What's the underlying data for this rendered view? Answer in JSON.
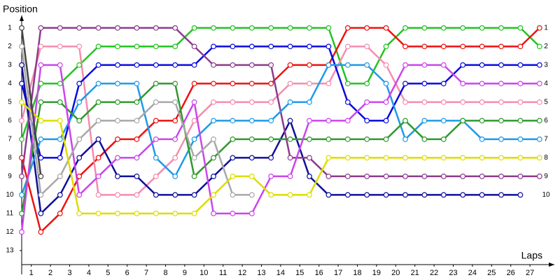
{
  "chart_data": {
    "type": "line",
    "y_label": "Position",
    "x_label": "Laps",
    "x": [
      0,
      1,
      2,
      3,
      4,
      5,
      6,
      7,
      8,
      9,
      10,
      11,
      12,
      13,
      14,
      15,
      16,
      17,
      18,
      19,
      20,
      21,
      22,
      23,
      24,
      25,
      26,
      27
    ],
    "xlim": [
      0,
      28
    ],
    "xticks": [
      {
        "value": 0.5,
        "label": "1"
      },
      {
        "value": 1.5,
        "label": "2"
      },
      {
        "value": 2.5,
        "label": "3"
      },
      {
        "value": 3.5,
        "label": "4"
      },
      {
        "value": 4.5,
        "label": "5"
      },
      {
        "value": 5.5,
        "label": "6"
      },
      {
        "value": 6.5,
        "label": "7"
      },
      {
        "value": 7.5,
        "label": "8"
      },
      {
        "value": 8.5,
        "label": "9"
      },
      {
        "value": 9.5,
        "label": "10"
      },
      {
        "value": 10.5,
        "label": "11"
      },
      {
        "value": 11.5,
        "label": "12"
      },
      {
        "value": 12.5,
        "label": "13"
      },
      {
        "value": 13.5,
        "label": "14"
      },
      {
        "value": 14.5,
        "label": "15"
      },
      {
        "value": 15.5,
        "label": "16"
      },
      {
        "value": 16.5,
        "label": "17"
      },
      {
        "value": 17.5,
        "label": "18"
      },
      {
        "value": 18.5,
        "label": "19"
      },
      {
        "value": 19.5,
        "label": "20"
      },
      {
        "value": 20.5,
        "label": "21"
      },
      {
        "value": 21.5,
        "label": "22"
      },
      {
        "value": 22.5,
        "label": "23"
      },
      {
        "value": 23.5,
        "label": "24"
      },
      {
        "value": 24.5,
        "label": "25"
      },
      {
        "value": 25.5,
        "label": "26"
      },
      {
        "value": 26.5,
        "label": "27"
      }
    ],
    "ylim": [
      13.7,
      0.4
    ],
    "yticks": [
      1,
      2,
      3,
      4,
      5,
      6,
      7,
      8,
      9,
      10,
      11,
      12,
      13
    ],
    "y2lim": [
      13.7,
      0.4
    ],
    "y2ticks": [
      1,
      2,
      3,
      4,
      5,
      6,
      7,
      8,
      9,
      10
    ],
    "series": [
      {
        "color": "#22c322",
        "values": [
          7,
          4,
          4,
          3,
          2,
          2,
          2,
          2,
          2,
          1,
          1,
          1,
          1,
          1,
          1,
          1,
          1,
          4,
          4,
          2,
          1,
          1,
          1,
          1,
          1,
          1,
          1,
          2
        ]
      },
      {
        "color": "#ee1111",
        "values": [
          8,
          12,
          11,
          9,
          8,
          7,
          7,
          6,
          6,
          4,
          4,
          4,
          4,
          4,
          3,
          3,
          3,
          1,
          1,
          1,
          2,
          2,
          2,
          2,
          2,
          2,
          2,
          1
        ]
      },
      {
        "color": "#f58cb0",
        "values": [
          6,
          2,
          2,
          2,
          10,
          10,
          10,
          9,
          8,
          6,
          5,
          5,
          5,
          5,
          4,
          4,
          4,
          2,
          2,
          3,
          5,
          5,
          5,
          5,
          5,
          5,
          5,
          5
        ]
      },
      {
        "color": "#0a0ae0",
        "values": [
          4,
          8,
          8,
          4,
          3,
          3,
          3,
          3,
          3,
          3,
          2,
          2,
          2,
          2,
          2,
          2,
          2,
          5,
          6,
          6,
          4,
          4,
          4,
          3,
          3,
          3,
          3,
          3
        ]
      },
      {
        "color": "#10109a",
        "values": [
          3,
          11,
          10,
          8,
          7,
          9,
          9,
          10,
          10,
          10,
          9,
          8,
          8,
          8,
          6,
          9,
          10,
          10,
          10,
          10,
          10,
          10,
          10,
          10,
          10,
          10,
          10,
          null
        ]
      },
      {
        "color": "#8e3a8e",
        "values": [
          9,
          1,
          1,
          1,
          1,
          1,
          1,
          1,
          1,
          2,
          3,
          3,
          3,
          3,
          8,
          8,
          9,
          9,
          9,
          9,
          9,
          9,
          9,
          9,
          9,
          9,
          9,
          9
        ]
      },
      {
        "color": "#1e9ae8",
        "values": [
          10,
          7,
          7,
          5,
          4,
          4,
          4,
          8,
          9,
          7,
          6,
          6,
          6,
          6,
          5,
          5,
          3,
          3,
          3,
          4,
          7,
          6,
          6,
          6,
          7,
          7,
          7,
          7
        ]
      },
      {
        "color": "#2e9a2e",
        "values": [
          11,
          5,
          5,
          6,
          5,
          5,
          5,
          4,
          4,
          9,
          8,
          7,
          7,
          7,
          7,
          7,
          7,
          7,
          7,
          7,
          6,
          7,
          7,
          6,
          6,
          6,
          6,
          6
        ]
      },
      {
        "color": "#cc44ee",
        "values": [
          12,
          3,
          3,
          10,
          9,
          8,
          8,
          7,
          7,
          5,
          11,
          11,
          11,
          9,
          9,
          6,
          6,
          6,
          5,
          5,
          3,
          3,
          3,
          4,
          4,
          4,
          4,
          4
        ]
      },
      {
        "color": "#a8a8a8",
        "values": [
          2,
          10,
          9,
          7,
          6,
          6,
          6,
          5,
          5,
          8,
          7,
          10,
          10,
          null,
          null,
          null,
          null,
          null,
          null,
          null,
          null,
          null,
          null,
          null,
          null,
          null,
          null,
          null
        ]
      },
      {
        "color": "#dddd00",
        "values": [
          5,
          6,
          6,
          11,
          11,
          11,
          11,
          11,
          11,
          11,
          10,
          9,
          9,
          10,
          10,
          10,
          8,
          8,
          8,
          8,
          8,
          8,
          8,
          8,
          8,
          8,
          8,
          8
        ]
      },
      {
        "color": "#444444",
        "values": [
          1,
          9,
          null,
          null,
          null,
          null,
          null,
          null,
          null,
          null,
          null,
          null,
          null,
          null,
          null,
          null,
          null,
          null,
          null,
          null,
          null,
          null,
          null,
          null,
          null,
          null,
          null,
          null
        ]
      }
    ]
  }
}
